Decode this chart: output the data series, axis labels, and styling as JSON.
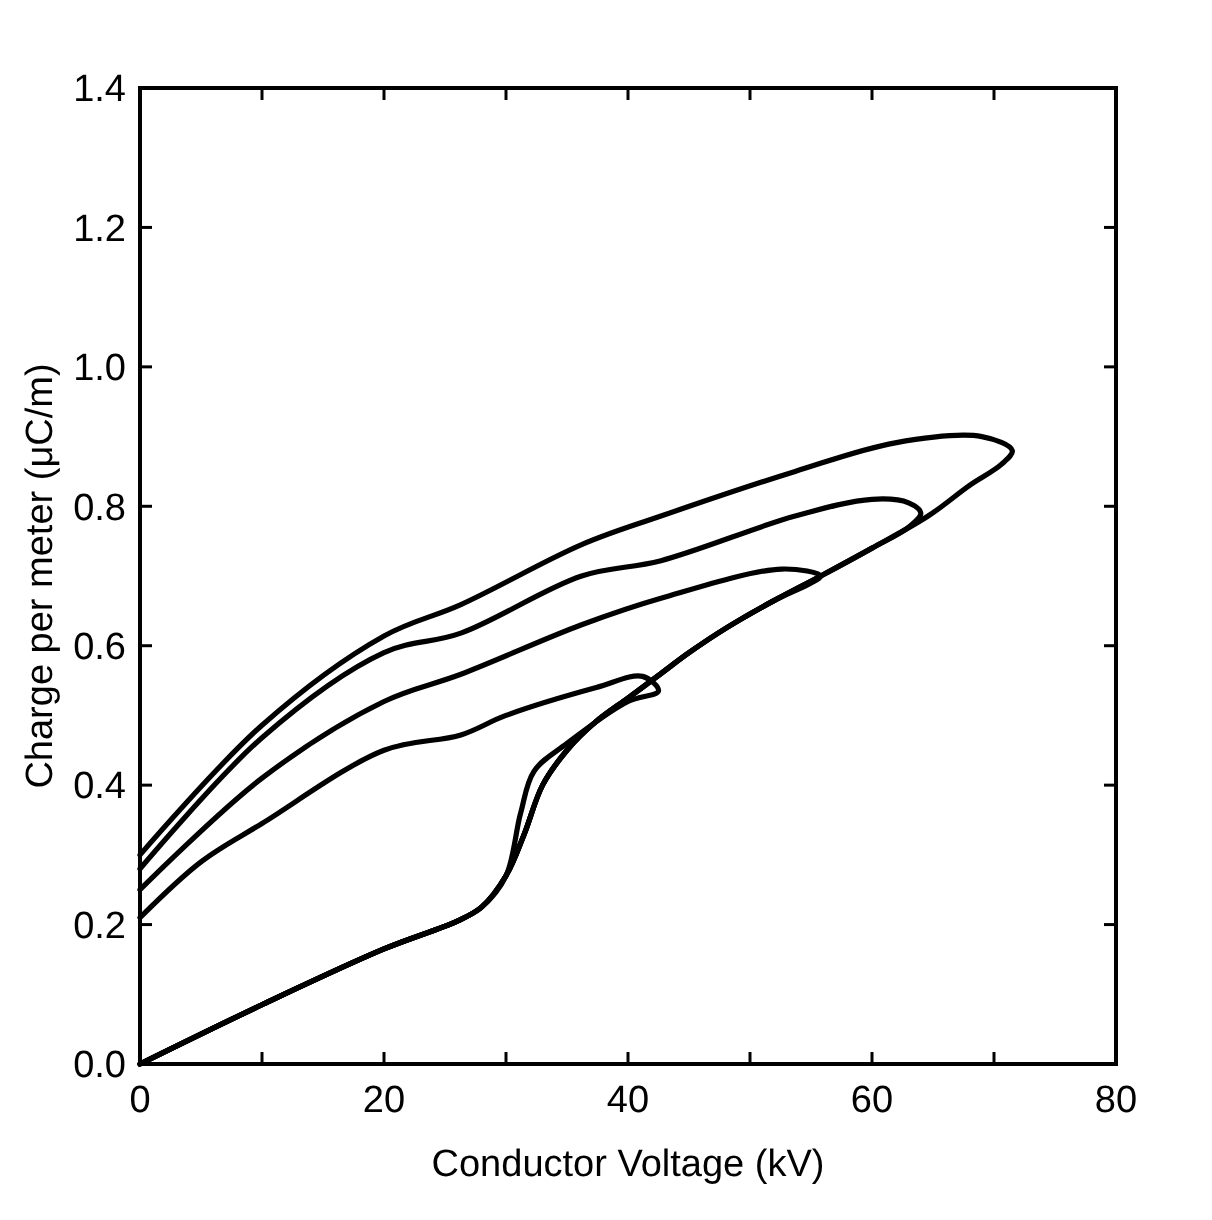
{
  "chart_data": {
    "type": "line",
    "xlabel": "Conductor Voltage (kV)",
    "ylabel": "Charge per meter (μC/m)",
    "xlim": [
      0,
      80
    ],
    "ylim": [
      0,
      1.4
    ],
    "xticks": [
      0,
      {
        "value": 10,
        "label": null
      },
      20,
      {
        "value": 30,
        "label": null
      },
      40,
      {
        "value": 50,
        "label": null
      },
      60,
      {
        "value": 70,
        "label": null
      },
      80
    ],
    "yticks": [
      {
        "value": 0,
        "label": "0.0"
      },
      0.2,
      0.4,
      0.6,
      0.8,
      {
        "value": 1,
        "label": "1.0"
      },
      1.2,
      1.4
    ],
    "grid": false,
    "marker": "none",
    "line_style": "solid",
    "series": [
      {
        "color": "#000000",
        "x": [
          0,
          10,
          20,
          26,
          28,
          30,
          31.2,
          32.3,
          35,
          40,
          42.5,
          41.2,
          37.4,
          30,
          26.3,
          20,
          10,
          5,
          0
        ],
        "values": [
          0,
          0.085,
          0.165,
          0.205,
          0.225,
          0.27,
          0.36,
          0.42,
          0.46,
          0.52,
          0.535,
          0.556,
          0.54,
          0.5,
          0.472,
          0.45,
          0.345,
          0.29,
          0.21
        ]
      },
      {
        "color": "#000000",
        "x": [
          0,
          10,
          20,
          26,
          28,
          30,
          31.5,
          33,
          35,
          37.3,
          40,
          42.7,
          45,
          48.2,
          52,
          55,
          55.8,
          52.6,
          42.7,
          36.2,
          26.3,
          20,
          10,
          0
        ],
        "values": [
          0,
          0.085,
          0.165,
          0.205,
          0.225,
          0.27,
          0.33,
          0.4,
          0.45,
          0.49,
          0.525,
          0.56,
          0.59,
          0.627,
          0.665,
          0.69,
          0.7,
          0.71,
          0.668,
          0.63,
          0.559,
          0.52,
          0.41,
          0.25
        ]
      },
      {
        "color": "#000000",
        "x": [
          0,
          10,
          20,
          26,
          28,
          30,
          31.5,
          33,
          35,
          37.3,
          40,
          42.7,
          45,
          48.2,
          52,
          55.8,
          60,
          63,
          64,
          63,
          60,
          53.7,
          42.7,
          36.2,
          26.3,
          20,
          10,
          0
        ],
        "values": [
          0,
          0.085,
          0.165,
          0.205,
          0.225,
          0.27,
          0.33,
          0.4,
          0.45,
          0.49,
          0.525,
          0.56,
          0.59,
          0.627,
          0.665,
          0.7,
          0.74,
          0.77,
          0.79,
          0.805,
          0.81,
          0.786,
          0.722,
          0.7,
          0.618,
          0.59,
          0.468,
          0.28
        ]
      },
      {
        "color": "#000000",
        "x": [
          0,
          10,
          20,
          26,
          28,
          30,
          31.5,
          33,
          35,
          37.3,
          40,
          42.7,
          45,
          48.2,
          52,
          55.8,
          60,
          64.6,
          68,
          70.6,
          71.5,
          69,
          61.9,
          53.7,
          42.7,
          36.2,
          26.3,
          20,
          10,
          0
        ],
        "values": [
          0,
          0.085,
          0.165,
          0.205,
          0.225,
          0.27,
          0.33,
          0.4,
          0.45,
          0.49,
          0.525,
          0.56,
          0.59,
          0.627,
          0.665,
          0.7,
          0.74,
          0.786,
          0.83,
          0.86,
          0.88,
          0.9,
          0.891,
          0.85,
          0.786,
          0.745,
          0.659,
          0.614,
          0.486,
          0.3
        ]
      }
    ]
  }
}
